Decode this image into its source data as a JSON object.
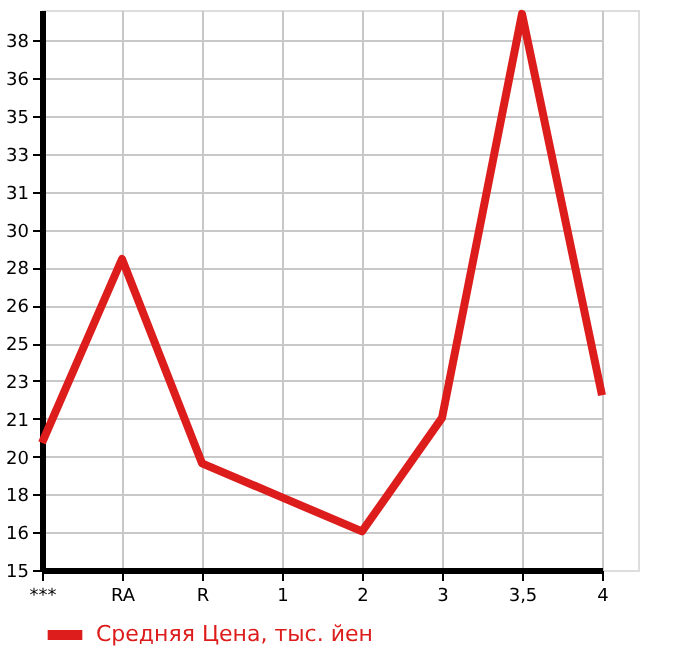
{
  "chart_data": {
    "type": "line",
    "categories": [
      "***",
      "RA",
      "R",
      "1",
      "2",
      "3",
      "3,5",
      "4"
    ],
    "series": [
      {
        "name": "Средняя Цена, тыс. йен",
        "color": "#dd1c1c",
        "values": [
          20.4,
          28.5,
          19.5,
          18.0,
          16.5,
          21.5,
          39.3,
          22.5
        ]
      }
    ],
    "ylim": [
      14.8,
      39.47
    ],
    "yticks": [
      {
        "value": 14.8,
        "label": "15"
      },
      {
        "value": 16.47,
        "label": "16"
      },
      {
        "value": 18.13,
        "label": "18"
      },
      {
        "value": 19.8,
        "label": "20"
      },
      {
        "value": 21.47,
        "label": "21"
      },
      {
        "value": 23.13,
        "label": "23"
      },
      {
        "value": 24.8,
        "label": "25"
      },
      {
        "value": 26.47,
        "label": "26"
      },
      {
        "value": 28.13,
        "label": "28"
      },
      {
        "value": 29.8,
        "label": "30"
      },
      {
        "value": 31.47,
        "label": "31"
      },
      {
        "value": 33.13,
        "label": "33"
      },
      {
        "value": 34.8,
        "label": "35"
      },
      {
        "value": 36.47,
        "label": "36"
      },
      {
        "value": 38.13,
        "label": "38"
      }
    ],
    "grid": true,
    "legend": "bottom",
    "marker": "none",
    "line_style": "solid"
  }
}
